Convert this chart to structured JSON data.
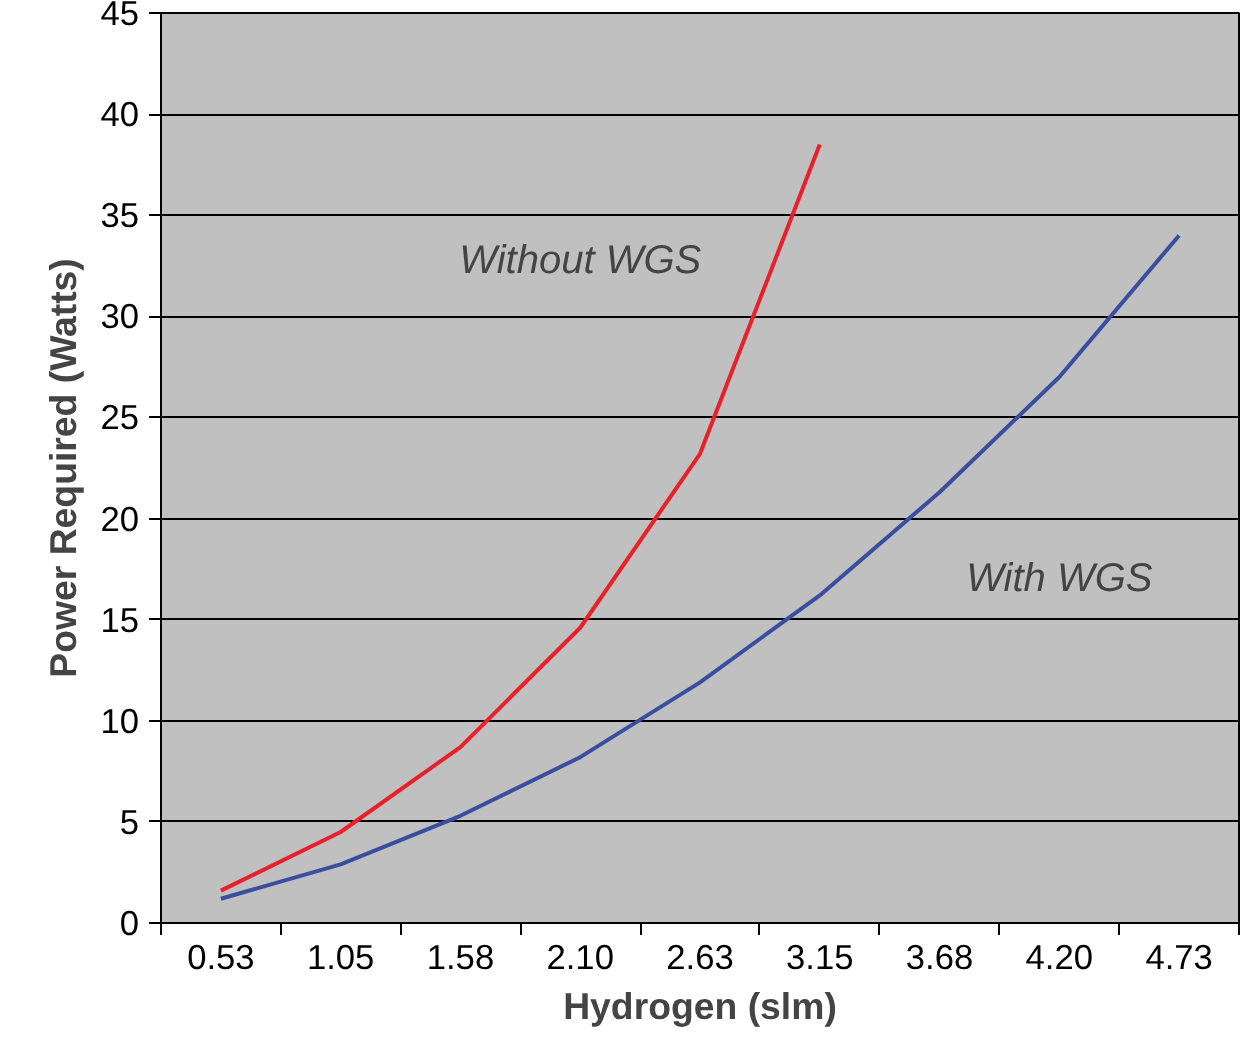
{
  "chart_data": {
    "type": "line",
    "xlabel": "Hydrogen (slm)",
    "ylabel": "Power Required (Watts)",
    "categories": [
      "0.53",
      "1.05",
      "1.58",
      "2.10",
      "2.63",
      "3.15",
      "3.68",
      "4.20",
      "4.73"
    ],
    "series": [
      {
        "name": "Without WGS",
        "color": "#e8202a",
        "values": [
          1.6,
          4.5,
          8.7,
          14.6,
          23.2,
          38.5,
          null,
          null,
          null
        ]
      },
      {
        "name": "With WGS",
        "color": "#3a4ea0",
        "values": [
          1.2,
          2.9,
          5.3,
          8.2,
          11.9,
          16.2,
          21.3,
          27.0,
          34.0
        ]
      }
    ],
    "ylim": [
      0,
      45
    ],
    "yticks": [
      0,
      5,
      10,
      15,
      20,
      25,
      30,
      35,
      40,
      45
    ],
    "grid": "y",
    "legend": false,
    "marker": "none",
    "line_style": "solid"
  }
}
